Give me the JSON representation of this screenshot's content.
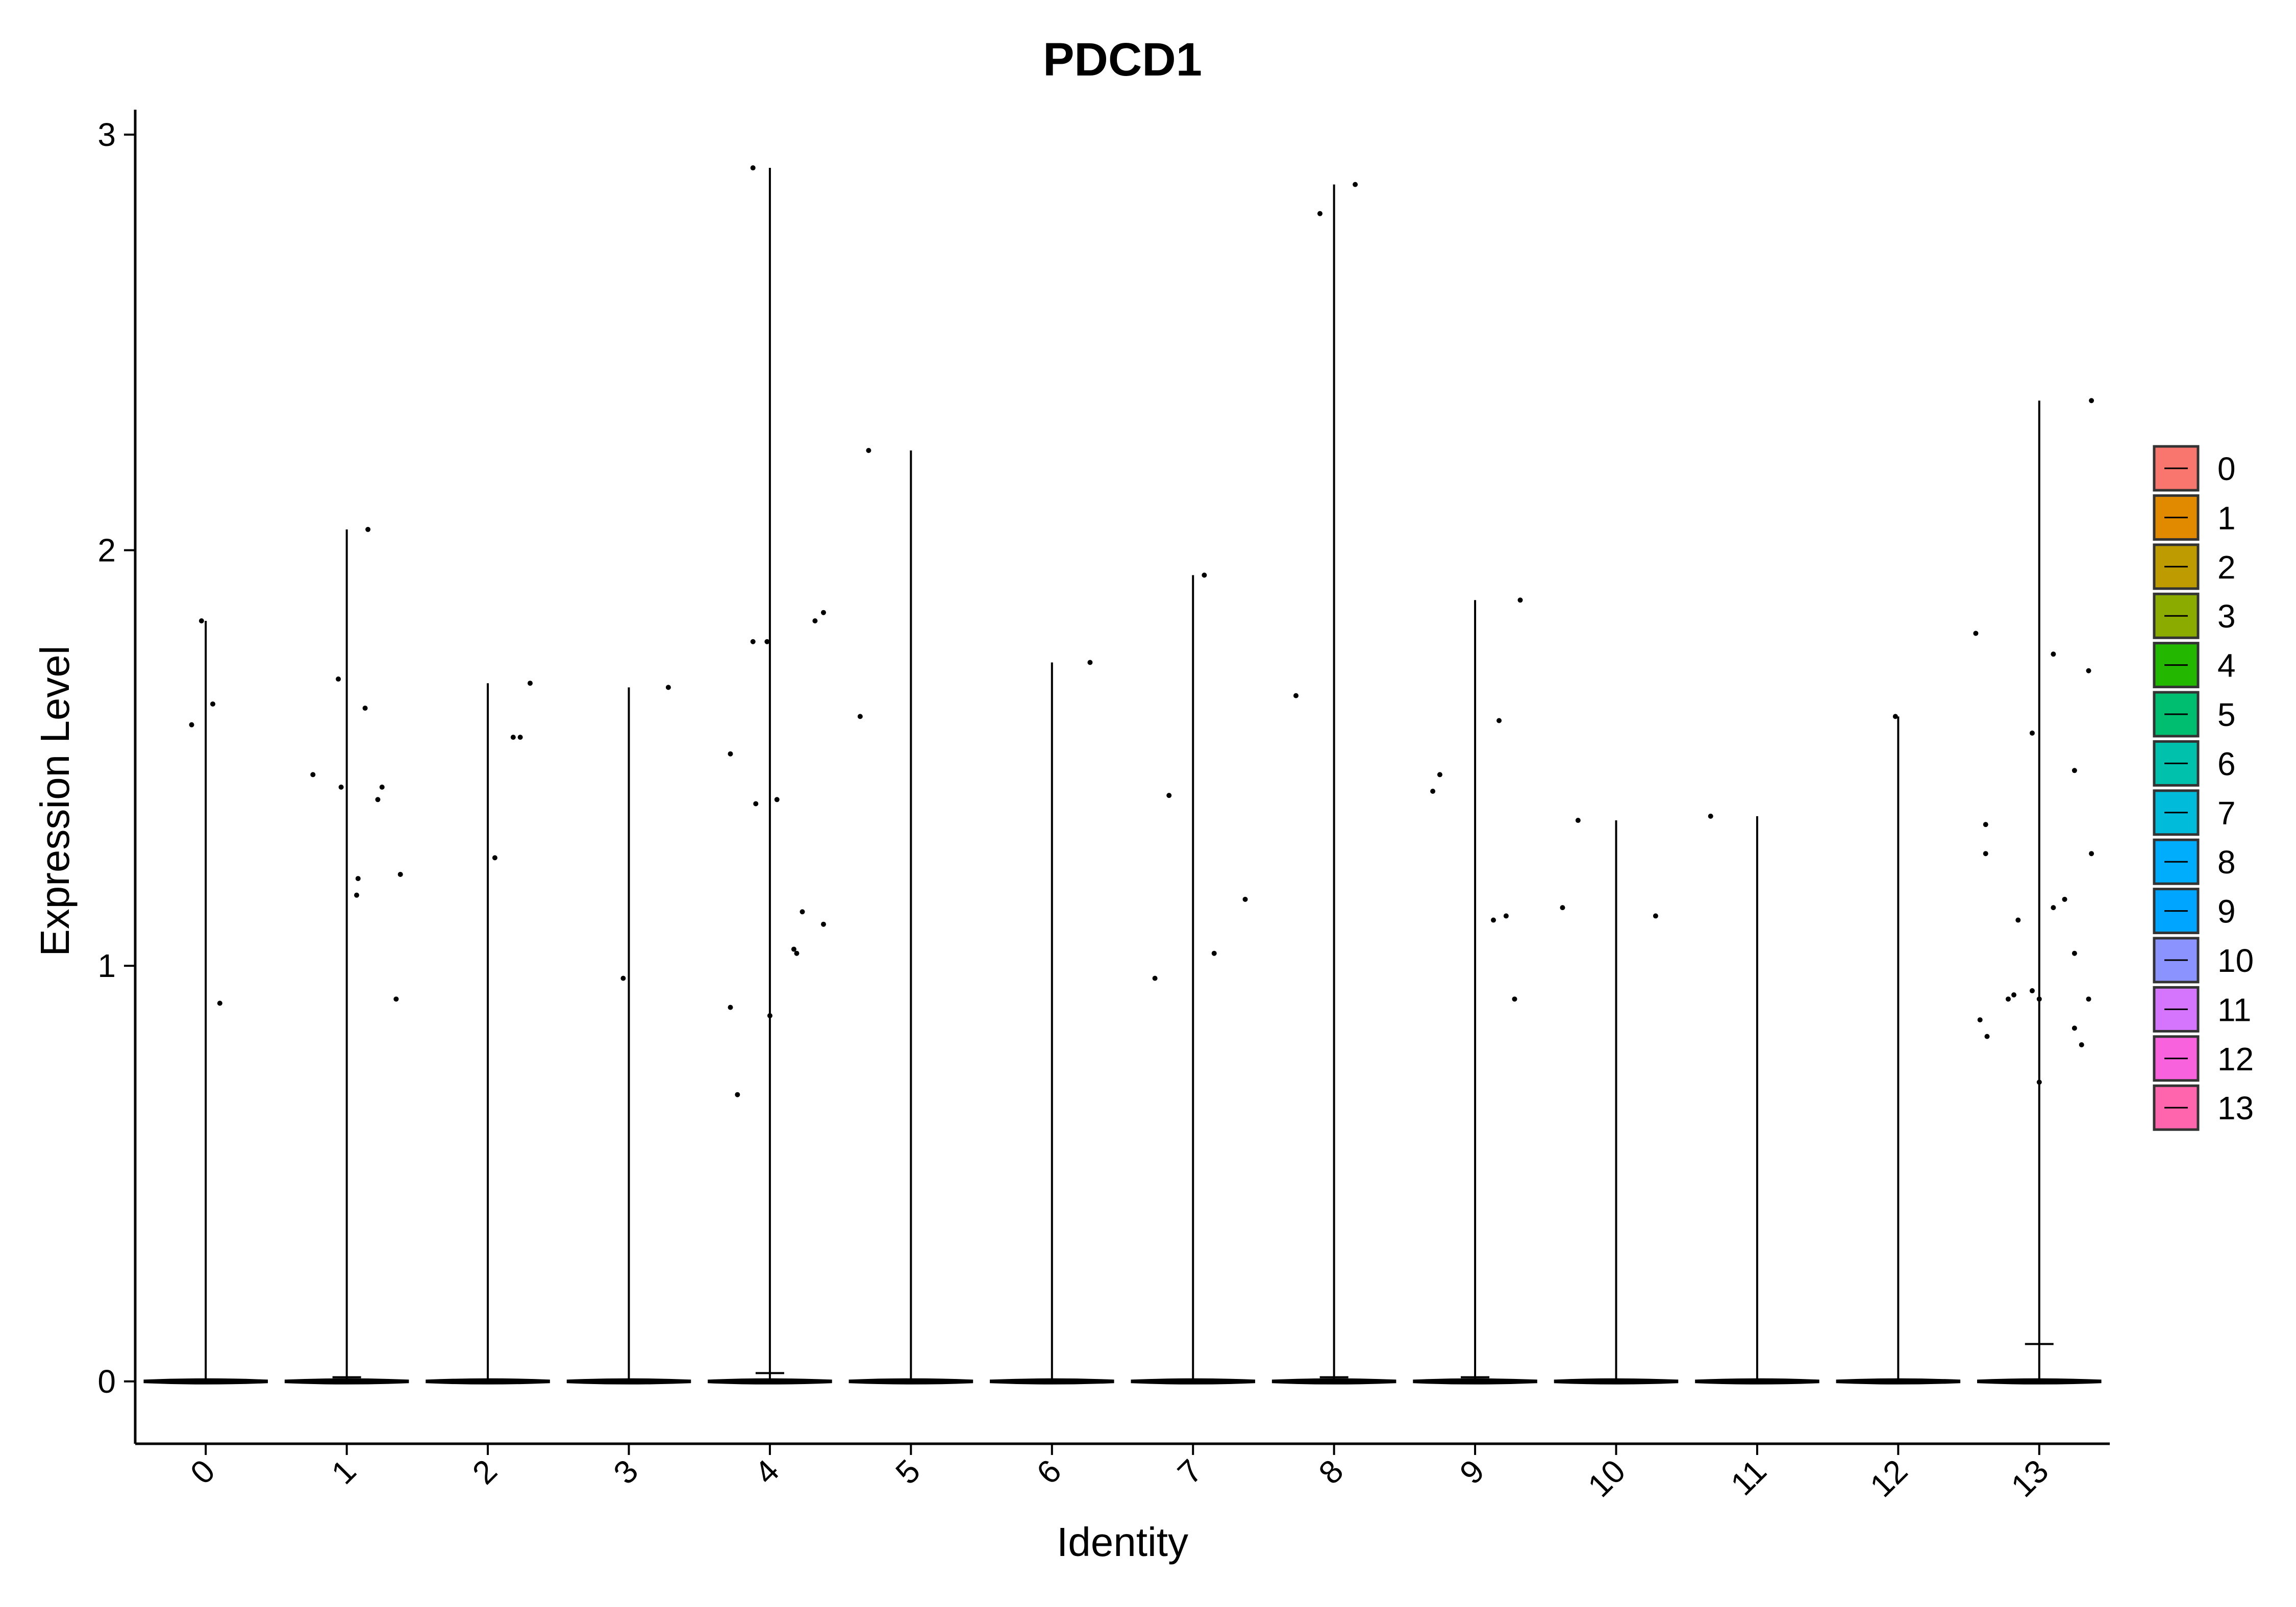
{
  "chart_data": {
    "type": "violin",
    "title": "PDCD1",
    "xlabel": "Identity",
    "ylabel": "Expression Level",
    "ylim": [
      -0.15,
      3.06
    ],
    "yticks": [
      0,
      1,
      2,
      3
    ],
    "categories": [
      "0",
      "1",
      "2",
      "3",
      "4",
      "5",
      "6",
      "7",
      "8",
      "9",
      "10",
      "11",
      "12",
      "13"
    ],
    "colors": [
      "#F8766D",
      "#E18A00",
      "#BE9C00",
      "#8CAB00",
      "#24B700",
      "#00BE70",
      "#00C1AB",
      "#00BBDA",
      "#00ACFC",
      "#00A5FF",
      "#8B93FF",
      "#D575FE",
      "#F962DD",
      "#FF65AC"
    ],
    "series": [
      {
        "category": "0",
        "max": 1.83,
        "median": 0.0,
        "points": [
          [
            -0.03,
            1.83
          ],
          [
            -0.1,
            1.58
          ],
          [
            0.05,
            1.63
          ],
          [
            0.1,
            0.91
          ]
        ]
      },
      {
        "category": "1",
        "max": 2.05,
        "median": 0.01,
        "points": [
          [
            0.15,
            2.05
          ],
          [
            -0.06,
            1.69
          ],
          [
            -0.04,
            1.43
          ],
          [
            -0.24,
            1.46
          ],
          [
            0.13,
            1.62
          ],
          [
            0.25,
            1.43
          ],
          [
            0.22,
            1.4
          ],
          [
            0.08,
            1.21
          ],
          [
            0.07,
            1.17
          ],
          [
            0.38,
            1.22
          ],
          [
            0.35,
            0.92
          ]
        ]
      },
      {
        "category": "2",
        "max": 1.68,
        "median": 0.0,
        "points": [
          [
            0.3,
            1.68
          ],
          [
            0.18,
            1.55
          ],
          [
            0.23,
            1.55
          ],
          [
            0.05,
            1.26
          ]
        ]
      },
      {
        "category": "3",
        "max": 1.67,
        "median": 0.0,
        "points": [
          [
            0.28,
            1.67
          ],
          [
            -0.04,
            0.97
          ]
        ]
      },
      {
        "category": "4",
        "max": 2.92,
        "median": 0.02,
        "points": [
          [
            -0.12,
            2.92
          ],
          [
            -0.12,
            1.78
          ],
          [
            -0.02,
            1.78
          ],
          [
            0.32,
            1.83
          ],
          [
            0.38,
            1.85
          ],
          [
            -0.28,
            1.51
          ],
          [
            -0.1,
            1.39
          ],
          [
            0.05,
            1.4
          ],
          [
            0.23,
            1.13
          ],
          [
            0.17,
            1.04
          ],
          [
            0.19,
            1.03
          ],
          [
            0.38,
            1.1
          ],
          [
            -0.28,
            0.9
          ],
          [
            0.0,
            0.88
          ],
          [
            -0.23,
            0.69
          ]
        ]
      },
      {
        "category": "5",
        "max": 2.24,
        "median": 0.0,
        "points": [
          [
            -0.3,
            2.24
          ],
          [
            -0.36,
            1.6
          ]
        ]
      },
      {
        "category": "6",
        "max": 1.73,
        "median": 0.0,
        "points": [
          [
            0.27,
            1.73
          ]
        ]
      },
      {
        "category": "7",
        "max": 1.94,
        "median": 0.0,
        "points": [
          [
            0.08,
            1.94
          ],
          [
            -0.17,
            1.41
          ],
          [
            0.37,
            1.16
          ],
          [
            0.15,
            1.03
          ],
          [
            -0.27,
            0.97
          ]
        ]
      },
      {
        "category": "8",
        "max": 2.88,
        "median": 0.01,
        "points": [
          [
            -0.1,
            2.81
          ],
          [
            0.15,
            2.88
          ],
          [
            -0.27,
            1.65
          ]
        ]
      },
      {
        "category": "9",
        "max": 1.88,
        "median": 0.01,
        "points": [
          [
            0.32,
            1.88
          ],
          [
            0.17,
            1.59
          ],
          [
            -0.25,
            1.46
          ],
          [
            -0.3,
            1.42
          ],
          [
            0.22,
            1.12
          ],
          [
            0.13,
            1.11
          ],
          [
            0.28,
            0.92
          ]
        ]
      },
      {
        "category": "10",
        "max": 1.35,
        "median": 0.0,
        "points": [
          [
            -0.27,
            1.35
          ],
          [
            -0.38,
            1.14
          ],
          [
            0.28,
            1.12
          ]
        ]
      },
      {
        "category": "11",
        "max": 1.36,
        "median": 0.0,
        "points": [
          [
            -0.33,
            1.36
          ]
        ]
      },
      {
        "category": "12",
        "max": 1.6,
        "median": 0.0,
        "points": [
          [
            -0.02,
            1.6
          ]
        ]
      },
      {
        "category": "13",
        "max": 2.36,
        "median": 0.09,
        "points": [
          [
            0.37,
            2.36
          ],
          [
            -0.45,
            1.8
          ],
          [
            0.1,
            1.75
          ],
          [
            0.35,
            1.71
          ],
          [
            -0.05,
            1.56
          ],
          [
            0.25,
            1.47
          ],
          [
            -0.38,
            1.34
          ],
          [
            -0.38,
            1.27
          ],
          [
            0.37,
            1.27
          ],
          [
            0.18,
            1.16
          ],
          [
            0.1,
            1.14
          ],
          [
            -0.15,
            1.11
          ],
          [
            0.25,
            1.03
          ],
          [
            -0.18,
            0.93
          ],
          [
            -0.22,
            0.92
          ],
          [
            -0.05,
            0.94
          ],
          [
            0.0,
            0.92
          ],
          [
            0.35,
            0.92
          ],
          [
            -0.42,
            0.87
          ],
          [
            0.25,
            0.85
          ],
          [
            -0.37,
            0.83
          ],
          [
            0.3,
            0.81
          ],
          [
            0.0,
            0.72
          ]
        ]
      }
    ],
    "legend": {
      "position": "right",
      "entries": [
        "0",
        "1",
        "2",
        "3",
        "4",
        "5",
        "6",
        "7",
        "8",
        "9",
        "10",
        "11",
        "12",
        "13"
      ]
    }
  }
}
